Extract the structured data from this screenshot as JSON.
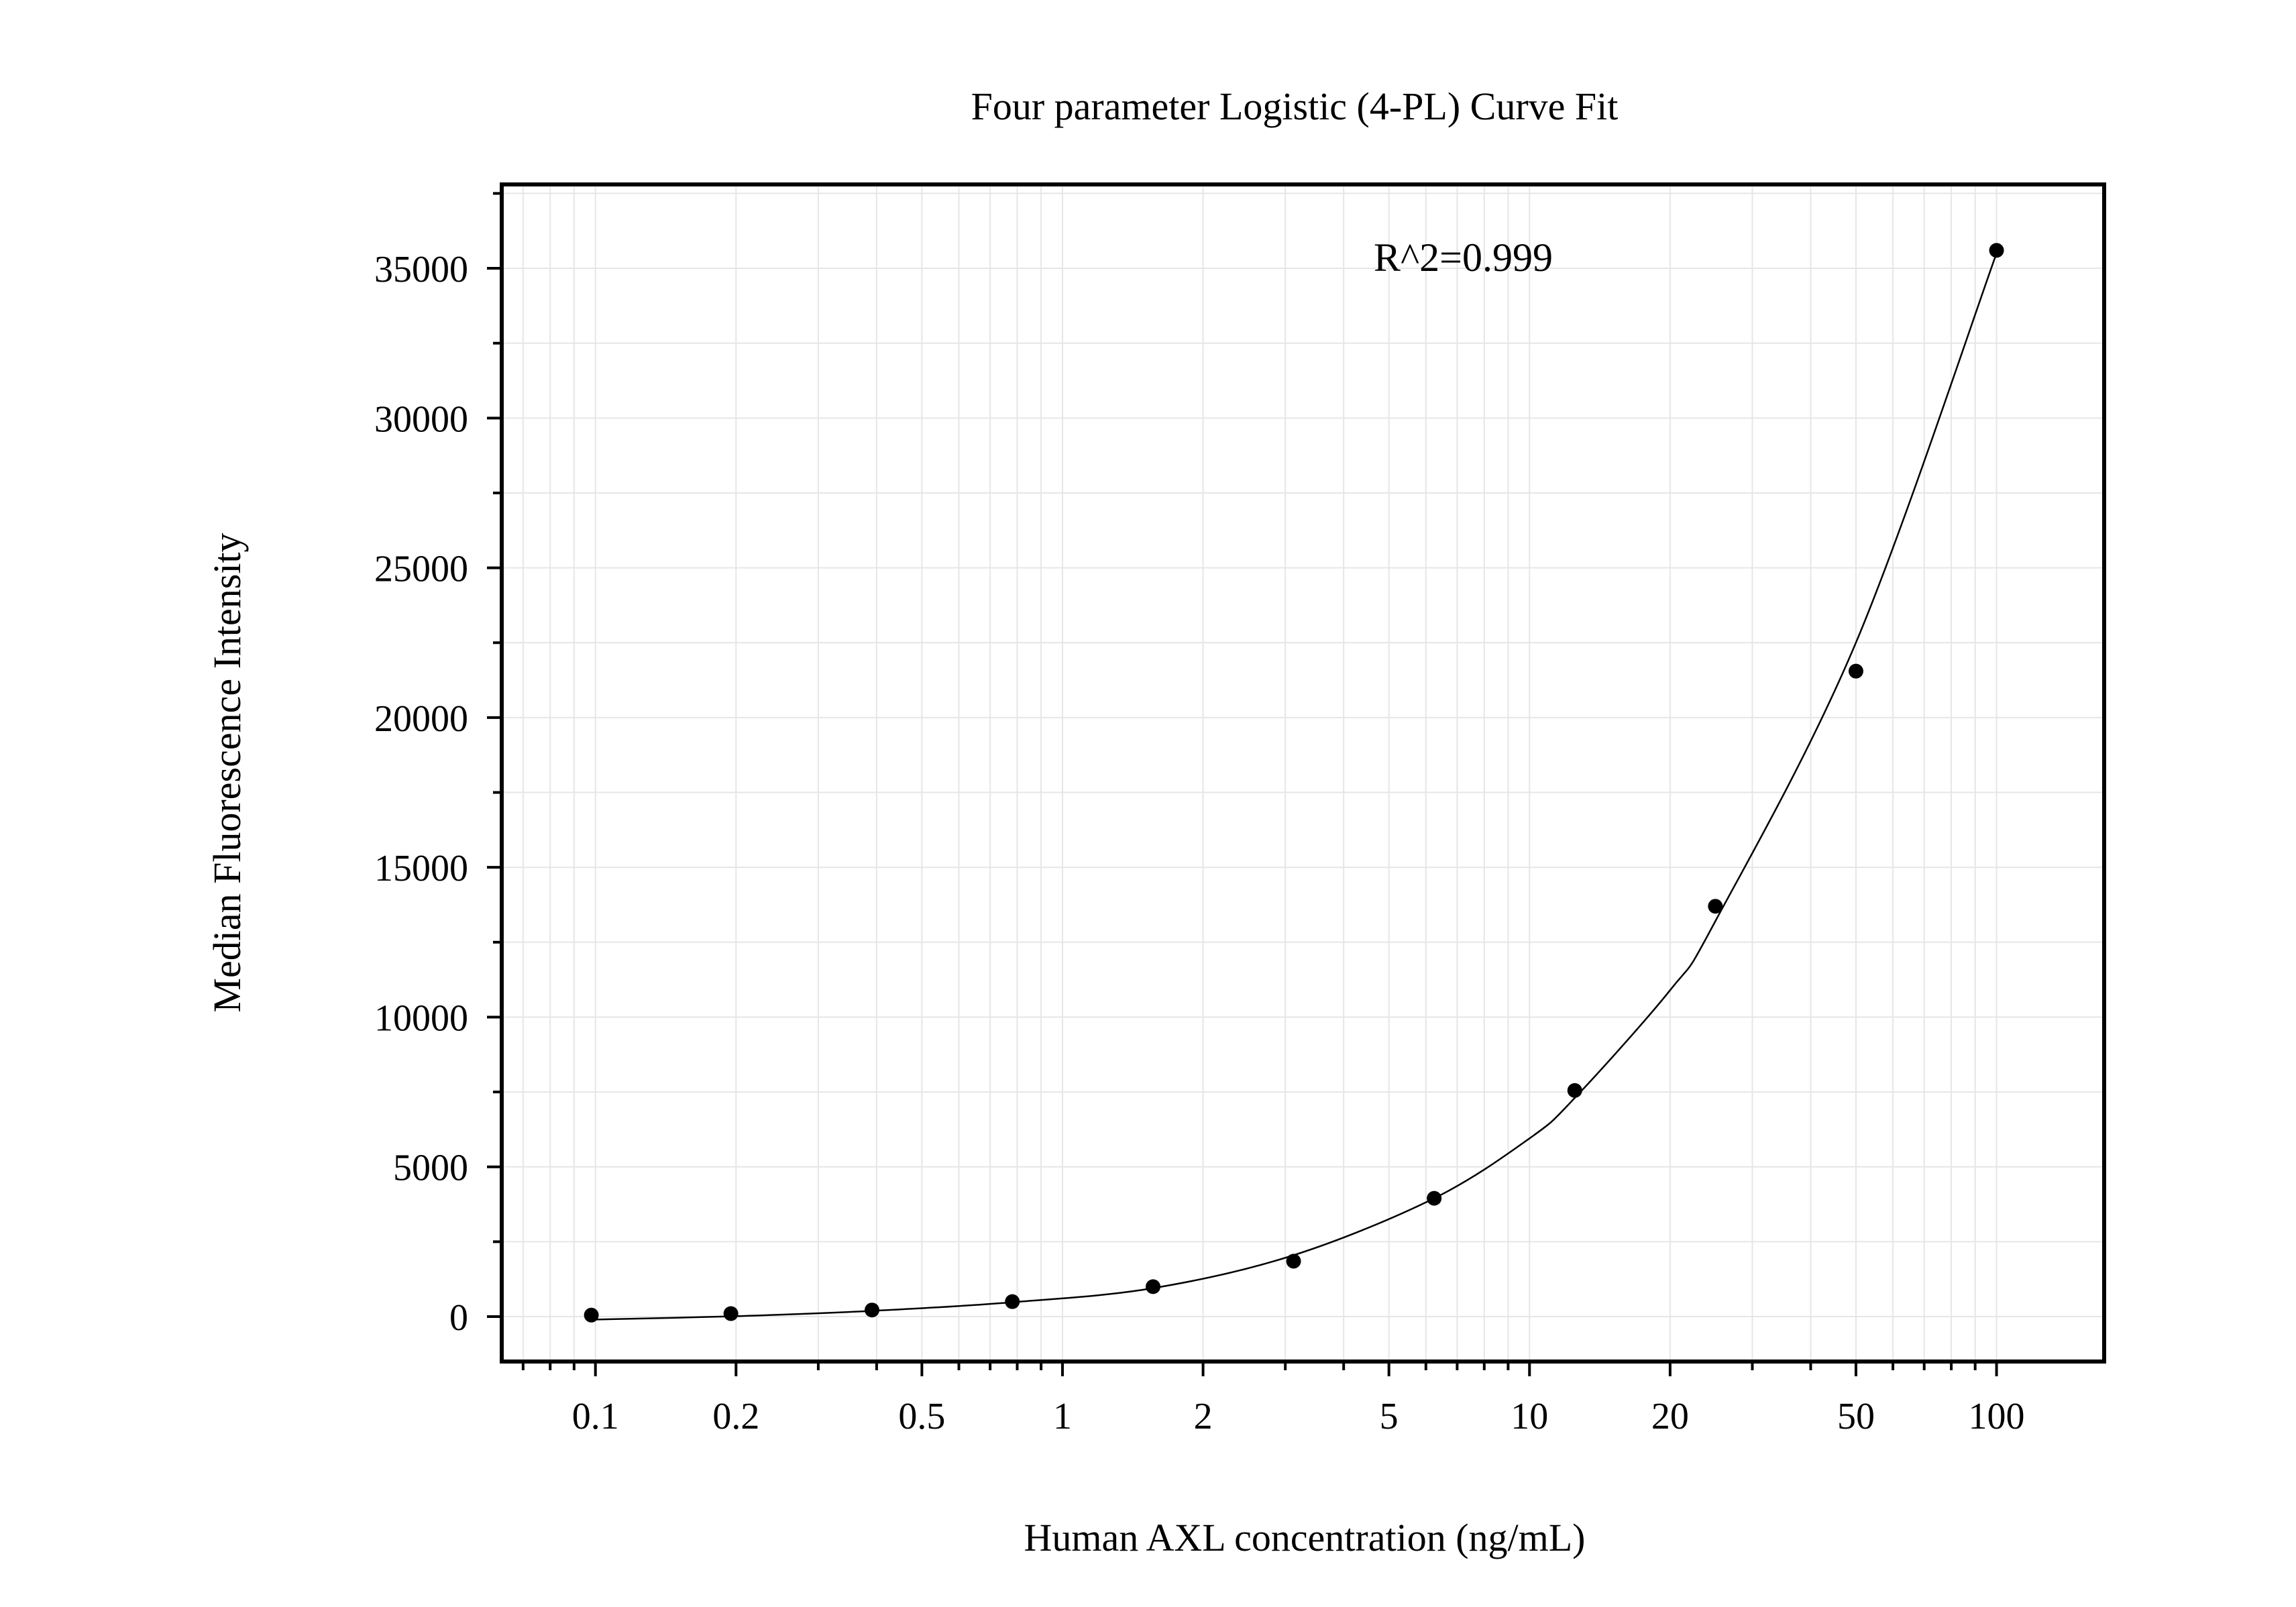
{
  "chart_data": {
    "type": "scatter",
    "title": "Four parameter Logistic (4-PL) Curve Fit",
    "xlabel": "Human AXL concentration (ng/mL)",
    "ylabel": "Median Fluorescence Intensity",
    "x_scale": "log",
    "xlim": [
      0.063,
      170
    ],
    "ylim": [
      -1500,
      37800
    ],
    "x_ticks": [
      0.1,
      0.2,
      0.5,
      1,
      2,
      5,
      10,
      20,
      50,
      100
    ],
    "x_tick_labels": [
      "0.1",
      "0.2",
      "0.5",
      "1",
      "2",
      "5",
      "10",
      "20",
      "50",
      "100"
    ],
    "y_ticks": [
      0,
      5000,
      10000,
      15000,
      20000,
      25000,
      30000,
      35000
    ],
    "y_tick_labels": [
      "0",
      "5000",
      "10000",
      "15000",
      "20000",
      "25000",
      "30000",
      "35000"
    ],
    "grid": true,
    "annotation": "R^2=0.999",
    "series": [
      {
        "points": [
          {
            "x": 0.098,
            "y": 50
          },
          {
            "x": 0.195,
            "y": 100
          },
          {
            "x": 0.391,
            "y": 220
          },
          {
            "x": 0.781,
            "y": 500
          },
          {
            "x": 1.563,
            "y": 1000
          },
          {
            "x": 3.125,
            "y": 1850
          },
          {
            "x": 6.25,
            "y": 3950
          },
          {
            "x": 12.5,
            "y": 7550
          },
          {
            "x": 25,
            "y": 13700
          },
          {
            "x": 50,
            "y": 21550
          },
          {
            "x": 100,
            "y": 35600
          }
        ]
      }
    ],
    "fit_curve": {
      "model": "4-PL",
      "points": [
        {
          "x": 0.098,
          "y": -100
        },
        {
          "x": 0.195,
          "y": 10
        },
        {
          "x": 0.391,
          "y": 190
        },
        {
          "x": 0.781,
          "y": 480
        },
        {
          "x": 1.563,
          "y": 950
        },
        {
          "x": 3.125,
          "y": 2050
        },
        {
          "x": 6.25,
          "y": 3950
        },
        {
          "x": 10,
          "y": 5950
        },
        {
          "x": 12.5,
          "y": 7300
        },
        {
          "x": 20,
          "y": 10900
        },
        {
          "x": 25,
          "y": 13200
        },
        {
          "x": 50,
          "y": 22500
        },
        {
          "x": 100,
          "y": 35500
        }
      ]
    }
  }
}
